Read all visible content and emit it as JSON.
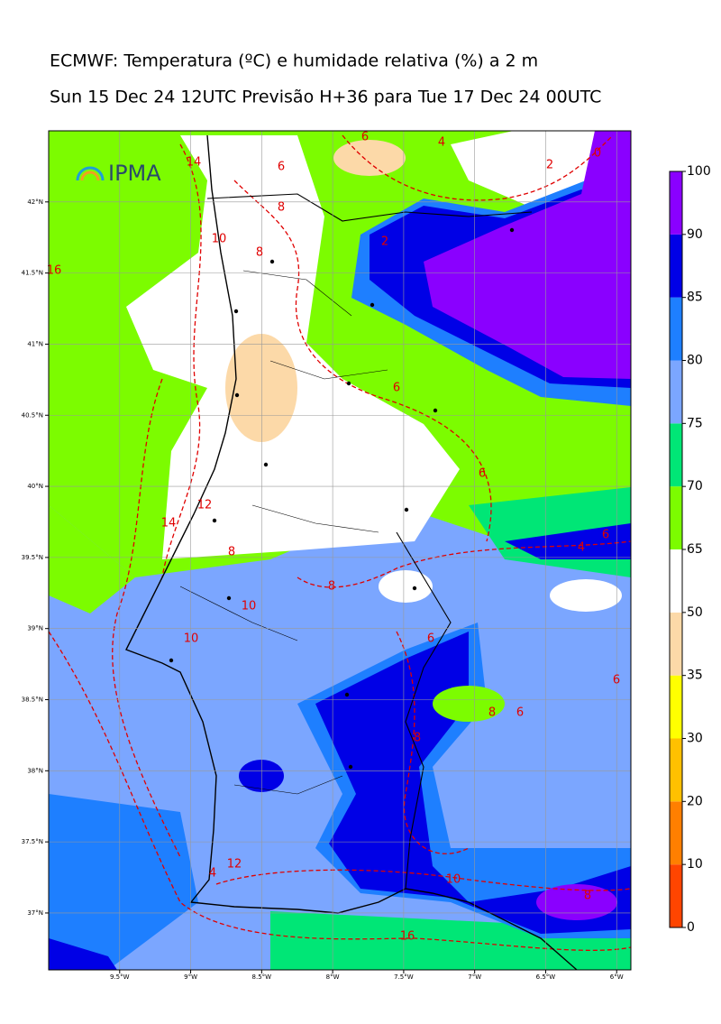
{
  "header": {
    "title": "ECMWF: Temperatura (ºC) e humidade relativa (%) a 2 m",
    "subtitle": "Sun 15 Dec 24 12UTC Previsão H+36 para Tue 17 Dec 24 00UTC"
  },
  "logo": "IPMA",
  "map": {
    "xlim": [
      -10.0,
      -5.9
    ],
    "ylim": [
      36.6,
      42.5
    ],
    "xticks": [
      {
        "value": -9.5,
        "label": "9.5°W"
      },
      {
        "value": -9,
        "label": "9°W"
      },
      {
        "value": -8.5,
        "label": "8.5°W"
      },
      {
        "value": -8,
        "label": "8°W"
      },
      {
        "value": -7.5,
        "label": "7.5°W"
      },
      {
        "value": -7,
        "label": "7°W"
      },
      {
        "value": -6.5,
        "label": "6.5°W"
      },
      {
        "value": -6,
        "label": "6°W"
      }
    ],
    "yticks": [
      {
        "value": 42,
        "label": "42°N"
      },
      {
        "value": 41.5,
        "label": "41.5°N"
      },
      {
        "value": 41,
        "label": "41°N"
      },
      {
        "value": 40.5,
        "label": "40.5°N"
      },
      {
        "value": 40,
        "label": "40°N"
      },
      {
        "value": 39.5,
        "label": "39.5°N"
      },
      {
        "value": 39,
        "label": "39°N"
      },
      {
        "value": 38.5,
        "label": "38.5°N"
      },
      {
        "value": 38,
        "label": "38°N"
      },
      {
        "value": 37.5,
        "label": "37.5°N"
      },
      {
        "value": 37,
        "label": "37°N"
      }
    ],
    "contour_labels": [
      "14",
      "6",
      "4",
      "2",
      "0",
      "8",
      "6",
      "10",
      "8",
      "2",
      "16",
      "6",
      "6",
      "12",
      "14",
      "4",
      "6",
      "8",
      "8",
      "10",
      "10",
      "6",
      "6",
      "8",
      "6",
      "8",
      "4",
      "12",
      "10",
      "8",
      "16"
    ]
  },
  "colorbar": {
    "ticks": [
      0,
      10,
      20,
      30,
      35,
      50,
      65,
      70,
      75,
      80,
      85,
      90,
      100
    ],
    "colors": [
      "#ff4500",
      "#ff7f00",
      "#ffc000",
      "#ffff00",
      "#fcd9a8",
      "#ffffff",
      "#7cfc00",
      "#00e676",
      "#7ba6ff",
      "#1e7fff",
      "#0000e6",
      "#8a00ff"
    ]
  }
}
